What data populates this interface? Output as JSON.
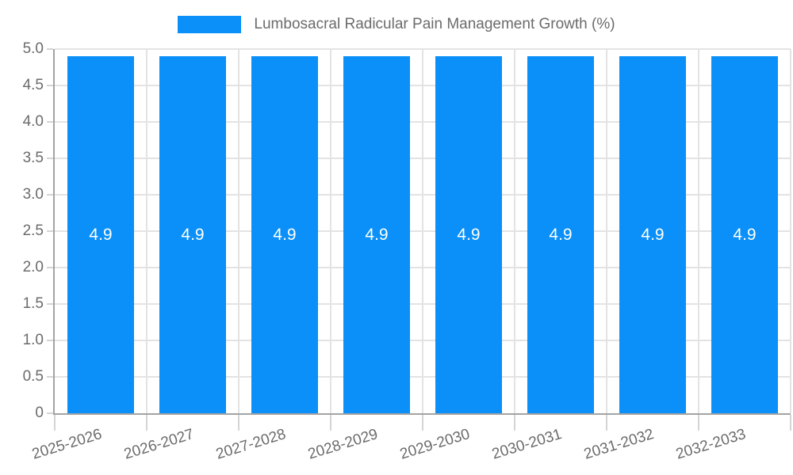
{
  "chart_data": {
    "type": "bar",
    "title": "Lumbosacral Radicular Pain Management Growth (%)",
    "legend_position": "top",
    "legend_entries": [
      "Lumbosacral Radicular Pain Management Growth (%)"
    ],
    "categories": [
      "2025-2026",
      "2026-2027",
      "2027-2028",
      "2028-2029",
      "2029-2030",
      "2030-2031",
      "2031-2032",
      "2032-2033"
    ],
    "values": [
      4.9,
      4.9,
      4.9,
      4.9,
      4.9,
      4.9,
      4.9,
      4.9
    ],
    "bar_value_labels": [
      "4.9",
      "4.9",
      "4.9",
      "4.9",
      "4.9",
      "4.9",
      "4.9",
      "4.9"
    ],
    "xlabel": "",
    "ylabel": "",
    "ylim": [
      0,
      5
    ],
    "ytick_labels": [
      "0",
      "0.5",
      "1.0",
      "1.5",
      "2.0",
      "2.5",
      "3.0",
      "3.5",
      "4.0",
      "4.5",
      "5.0"
    ],
    "ytick_values": [
      0,
      0.5,
      1,
      1.5,
      2,
      2.5,
      3,
      3.5,
      4,
      4.5,
      5
    ],
    "grid": true,
    "colors": {
      "bar": "#0a90f8",
      "grid": "#e3e3e3",
      "axis": "#a3a3a3",
      "tick_mark": "#d4d4d4",
      "axis_text": "#6b6b6b",
      "bar_label_text": "#ffffff"
    }
  }
}
